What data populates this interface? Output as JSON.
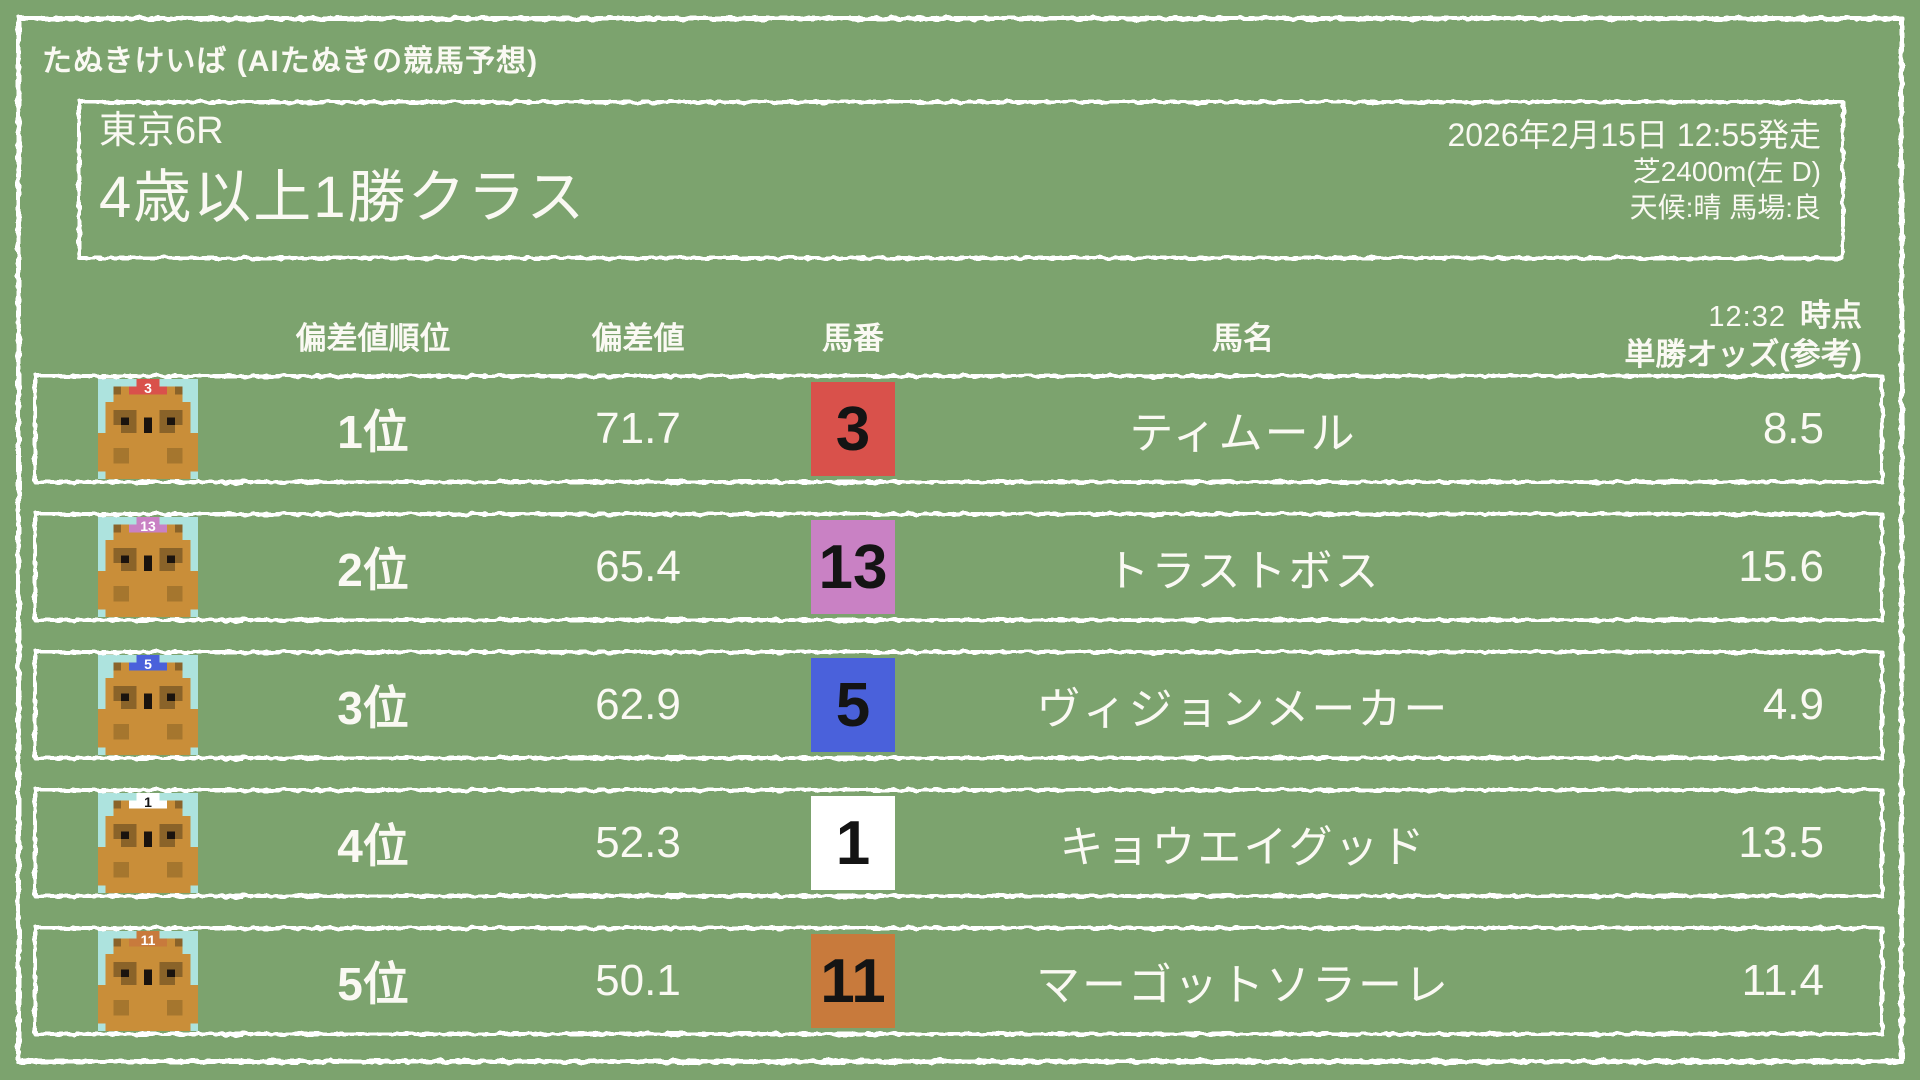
{
  "app_title": "たぬきけいば (AIたぬきの競馬予想)",
  "race": {
    "number": "東京6R",
    "name": "4歳以上1勝クラス",
    "start": "2026年2月15日 12:55発走",
    "course": "芝2400m(左 D)",
    "condition": "天候:晴 馬場:良"
  },
  "table": {
    "headers": {
      "rank": "偏差値順位",
      "score": "偏差値",
      "number": "馬番",
      "name": "馬名",
      "odds_time": "12:32",
      "odds_time_label": "時点",
      "odds_label": "単勝オッズ(参考)"
    },
    "rows": [
      {
        "rank": "1位",
        "score": "71.7",
        "number": "3",
        "name": "ティムール",
        "odds": "8.5",
        "number_bg": "#d9514b",
        "number_text": "#141414",
        "cap_text": "#ffffff"
      },
      {
        "rank": "2位",
        "score": "65.4",
        "number": "13",
        "name": "トラストボス",
        "odds": "15.6",
        "number_bg": "#c981c4",
        "number_text": "#141414",
        "cap_text": "#ffffff"
      },
      {
        "rank": "3位",
        "score": "62.9",
        "number": "5",
        "name": "ヴィジョンメーカー",
        "odds": "4.9",
        "number_bg": "#4a61db",
        "number_text": "#141414",
        "cap_text": "#ffffff"
      },
      {
        "rank": "4位",
        "score": "52.3",
        "number": "1",
        "name": "キョウエイグッド",
        "odds": "13.5",
        "number_bg": "#ffffff",
        "number_text": "#141414",
        "cap_text": "#141414"
      },
      {
        "rank": "5位",
        "score": "50.1",
        "number": "11",
        "name": "マーゴットソラーレ",
        "odds": "11.4",
        "number_bg": "#c87a3c",
        "number_text": "#141414",
        "cap_text": "#ffffff"
      }
    ]
  },
  "colors": {
    "background": "#7ca36e",
    "border": "#ffffff",
    "text": "#faf9f3",
    "avatar_bg": "#ade3de",
    "tanuki_body": "#c98e39",
    "tanuki_dark": "#8a6329",
    "tanuki_paw": "#a5762e",
    "tanuki_black": "#1a130e"
  }
}
